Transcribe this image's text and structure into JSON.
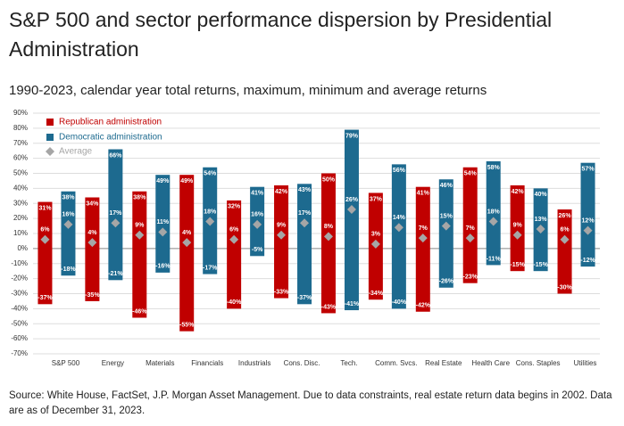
{
  "chart_data": {
    "type": "floating_bar",
    "title": "S&P 500 and sector performance dispersion by Presidential Administration",
    "subtitle": "1990-2023, calendar year total returns, maximum, minimum and average returns",
    "source": "Source: White House, FactSet, J.P. Morgan Asset Management. Due to data constraints, real estate return data begins in 2002. Data are as of December 31, 2023.",
    "categories": [
      "S&P 500",
      "Energy",
      "Materials",
      "Financials",
      "Industrials",
      "Cons. Disc.",
      "Tech.",
      "Comm. Svcs.",
      "Real Estate",
      "Health Care",
      "Cons. Staples",
      "Utilities"
    ],
    "ylim": [
      -70,
      90
    ],
    "yticks": [
      {
        "value": -70,
        "label": "-70%"
      },
      {
        "value": -60,
        "label": "-60%"
      },
      {
        "value": -50,
        "label": "-50%"
      },
      {
        "value": -40,
        "label": "-40%"
      },
      {
        "value": -30,
        "label": "-30%"
      },
      {
        "value": -20,
        "label": "-20%"
      },
      {
        "value": -10,
        "label": "-10%"
      },
      {
        "value": 0,
        "label": "0%"
      },
      {
        "value": 10,
        "label": "10%"
      },
      {
        "value": 20,
        "label": "20%"
      },
      {
        "value": 30,
        "label": "30%"
      },
      {
        "value": 40,
        "label": "40%"
      },
      {
        "value": 50,
        "label": "50%"
      },
      {
        "value": 60,
        "label": "60%"
      },
      {
        "value": 70,
        "label": "70%"
      },
      {
        "value": 80,
        "label": "80%"
      },
      {
        "value": 90,
        "label": "90%"
      }
    ],
    "grid": true,
    "legend": "top-left",
    "average_legend": {
      "name": "Average",
      "color": "#a6a6a6"
    },
    "series": [
      {
        "name": "Republican administration",
        "color": "#c00000",
        "high": {
          "values": [
            31,
            34,
            38,
            49,
            32,
            42,
            50,
            37,
            41,
            54,
            42,
            26
          ],
          "value_labels": [
            "31%",
            "34%",
            "38%",
            "49%",
            "32%",
            "42%",
            "50%",
            "37%",
            "41%",
            "54%",
            "42%",
            "26%"
          ]
        },
        "low": {
          "values": [
            -37,
            -35,
            -46,
            -55,
            -40,
            -33,
            -43,
            -34,
            -42,
            -23,
            -15,
            -30
          ],
          "value_labels": [
            "-37%",
            "-35%",
            "-46%",
            "-55%",
            "-40%",
            "-33%",
            "-43%",
            "-34%",
            "-42%",
            "-23%",
            "-15%",
            "-30%"
          ]
        },
        "average": {
          "values": [
            6,
            4,
            9,
            4,
            6,
            9,
            8,
            3,
            7,
            7,
            9,
            6
          ],
          "value_labels": [
            "6%",
            "4%",
            "9%",
            "4%",
            "6%",
            "9%",
            "8%",
            "3%",
            "7%",
            "7%",
            "9%",
            "6%"
          ]
        }
      },
      {
        "name": "Democratic administration",
        "color": "#1d6a8f",
        "high": {
          "values": [
            38,
            66,
            49,
            54,
            41,
            43,
            79,
            56,
            46,
            58,
            40,
            57
          ],
          "value_labels": [
            "38%",
            "66%",
            "49%",
            "54%",
            "41%",
            "43%",
            "79%",
            "56%",
            "46%",
            "58%",
            "40%",
            "57%"
          ]
        },
        "low": {
          "values": [
            -18,
            -21,
            -16,
            -17,
            -5,
            -37,
            -41,
            -40,
            -26,
            -11,
            -15,
            -12
          ],
          "value_labels": [
            "-18%",
            "-21%",
            "-16%",
            "-17%",
            "-5%",
            "-37%",
            "-41%",
            "-40%",
            "-26%",
            "-11%",
            "-15%",
            "-12%"
          ]
        },
        "average": {
          "values": [
            16,
            17,
            11,
            18,
            16,
            17,
            26,
            14,
            15,
            18,
            13,
            12
          ],
          "value_labels": [
            "16%",
            "17%",
            "11%",
            "18%",
            "16%",
            "17%",
            "26%",
            "14%",
            "15%",
            "18%",
            "13%",
            "12%"
          ]
        }
      }
    ]
  }
}
